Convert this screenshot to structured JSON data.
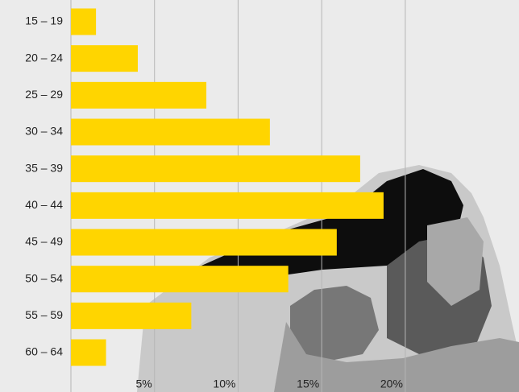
{
  "chart_data": {
    "type": "bar",
    "orientation": "horizontal",
    "categories": [
      "15 – 19",
      "20 – 24",
      "25 – 29",
      "30 – 34",
      "35 – 39",
      "40 – 44",
      "45 – 49",
      "50 – 54",
      "55 – 59",
      "60 – 64"
    ],
    "values": [
      1.5,
      4.0,
      8.1,
      11.9,
      17.3,
      18.7,
      15.9,
      13.0,
      7.2,
      2.1
    ],
    "color": "#ffd500",
    "xlim": [
      0,
      26.8
    ],
    "xticks": [
      {
        "value": 5,
        "label": "5%"
      },
      {
        "value": 10,
        "label": "10%"
      },
      {
        "value": 15,
        "label": "15%"
      },
      {
        "value": 20,
        "label": "20%"
      }
    ],
    "grid": true
  }
}
